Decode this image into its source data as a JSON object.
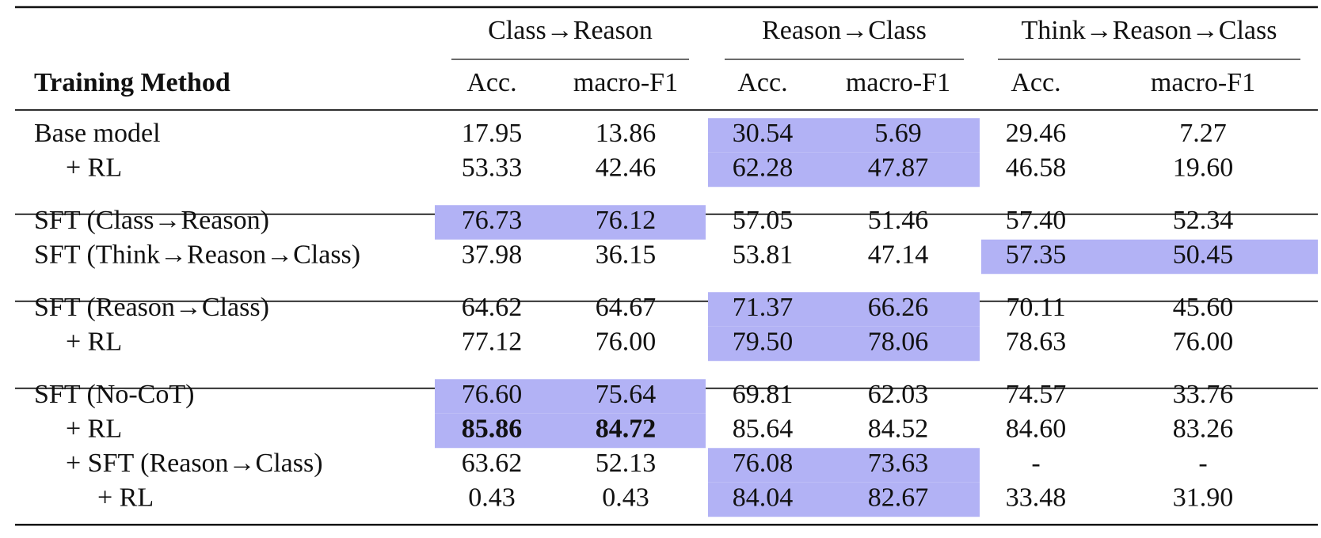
{
  "table": {
    "groups": [
      "Class→Reason",
      "Reason→Class",
      "Think→Reason→Class"
    ],
    "header": {
      "label": "Training Method",
      "columns": [
        "Acc.",
        "macro-F1",
        "Acc.",
        "macro-F1",
        "Acc.",
        "macro-F1"
      ]
    },
    "blocks": [
      {
        "rows": [
          {
            "label": "Base model",
            "cells": [
              "17.95",
              "13.86",
              "30.54",
              "5.69",
              "29.46",
              "7.27"
            ],
            "highlight": 1,
            "sub": [
              {
                "label": "+ RL",
                "cells": [
                  "53.33",
                  "42.46",
                  "62.28",
                  "47.87",
                  "46.58",
                  "19.60"
                ],
                "highlight": 1
              }
            ]
          }
        ]
      },
      {
        "rows": [
          {
            "label": "SFT (Class→Reason)",
            "cells": [
              "76.73",
              "76.12",
              "57.05",
              "51.46",
              "57.40",
              "52.34"
            ],
            "highlight": 0
          },
          {
            "label": "SFT (Think→Reason→Class)",
            "cells": [
              "37.98",
              "36.15",
              "53.81",
              "47.14",
              "57.35",
              "50.45"
            ],
            "highlight": 2
          }
        ]
      },
      {
        "rows": [
          {
            "label": "SFT (Reason→Class)",
            "cells": [
              "64.62",
              "64.67",
              "71.37",
              "66.26",
              "70.11",
              "45.60"
            ],
            "highlight": 1,
            "sub": [
              {
                "label": "+ RL",
                "cells": [
                  "77.12",
                  "76.00",
                  "79.50",
                  "78.06",
                  "78.63",
                  "76.00"
                ],
                "highlight": 1
              }
            ]
          }
        ]
      },
      {
        "rows": [
          {
            "label": "SFT (No-CoT)",
            "cells": [
              "76.60",
              "75.64",
              "69.81",
              "62.03",
              "74.57",
              "33.76"
            ],
            "highlight": 0,
            "sub": [
              {
                "label": "+ RL",
                "cells": [
                  "85.86",
                  "84.72",
                  "85.64",
                  "84.52",
                  "84.60",
                  "83.26"
                ],
                "highlight": 0,
                "bold_cells": [
                  0,
                  1
                ]
              },
              {
                "label": "+ SFT (Reason→Class)",
                "cells": [
                  "63.62",
                  "52.13",
                  "76.08",
                  "73.63",
                  "-",
                  "-"
                ],
                "highlight": 1,
                "sub": [
                  {
                    "label": "+ RL",
                    "cells": [
                      "0.43",
                      "0.43",
                      "84.04",
                      "82.67",
                      "33.48",
                      "31.90"
                    ],
                    "highlight": 1
                  }
                ]
              }
            ]
          }
        ]
      }
    ]
  }
}
